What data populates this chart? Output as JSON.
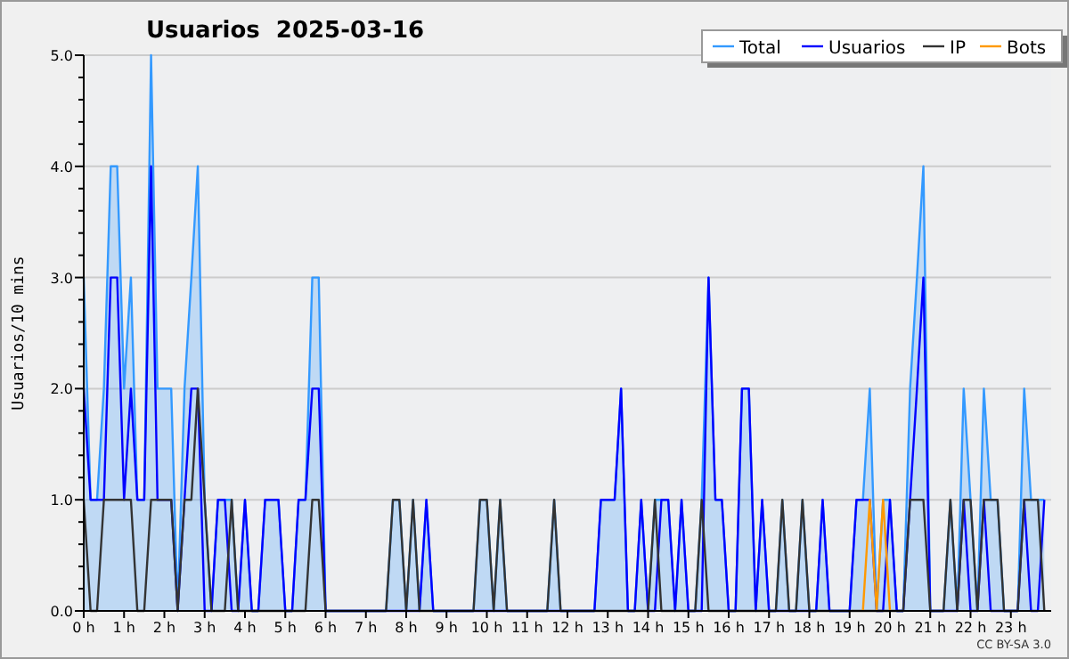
{
  "chart_data": {
    "type": "line",
    "title": "Usuarios  2025-03-16",
    "ylabel": "Usuarios/10 mins",
    "annotations": [
      "CC BY-SA 3.0"
    ],
    "xlim": [
      0,
      24
    ],
    "xticks": [
      {
        "value": 0,
        "label": "0 h"
      },
      {
        "value": 1,
        "label": "1 h"
      },
      {
        "value": 2,
        "label": "2 h"
      },
      {
        "value": 3,
        "label": "3 h"
      },
      {
        "value": 4,
        "label": "4 h"
      },
      {
        "value": 5,
        "label": "5 h"
      },
      {
        "value": 6,
        "label": "6 h"
      },
      {
        "value": 7,
        "label": "7 h"
      },
      {
        "value": 8,
        "label": "8 h"
      },
      {
        "value": 9,
        "label": "9 h"
      },
      {
        "value": 10,
        "label": "10 h"
      },
      {
        "value": 11,
        "label": "11 h"
      },
      {
        "value": 12,
        "label": "12 h"
      },
      {
        "value": 13,
        "label": "13 h"
      },
      {
        "value": 14,
        "label": "14 h"
      },
      {
        "value": 15,
        "label": "15 h"
      },
      {
        "value": 16,
        "label": "16 h"
      },
      {
        "value": 17,
        "label": "17 h"
      },
      {
        "value": 18,
        "label": "18 h"
      },
      {
        "value": 19,
        "label": "19 h"
      },
      {
        "value": 20,
        "label": "20 h"
      },
      {
        "value": 21,
        "label": "21 h"
      },
      {
        "value": 22,
        "label": "22 h"
      },
      {
        "value": 23,
        "label": "23 h"
      }
    ],
    "ylim": [
      0,
      5
    ],
    "yticks": [
      {
        "value": 0,
        "label": "0.0"
      },
      {
        "value": 0.2,
        "label": null
      },
      {
        "value": 0.4,
        "label": null
      },
      {
        "value": 0.6,
        "label": null
      },
      {
        "value": 0.8,
        "label": null
      },
      {
        "value": 1,
        "label": "1.0"
      },
      {
        "value": 1.2,
        "label": null
      },
      {
        "value": 1.4,
        "label": null
      },
      {
        "value": 1.6,
        "label": null
      },
      {
        "value": 1.8,
        "label": null
      },
      {
        "value": 2,
        "label": "2.0"
      },
      {
        "value": 2.2,
        "label": null
      },
      {
        "value": 2.4,
        "label": null
      },
      {
        "value": 2.6,
        "label": null
      },
      {
        "value": 2.8,
        "label": null
      },
      {
        "value": 3,
        "label": "3.0"
      },
      {
        "value": 3.2,
        "label": null
      },
      {
        "value": 3.4,
        "label": null
      },
      {
        "value": 3.6,
        "label": null
      },
      {
        "value": 3.8,
        "label": null
      },
      {
        "value": 4,
        "label": "4.0"
      },
      {
        "value": 4.2,
        "label": null
      },
      {
        "value": 4.4,
        "label": null
      },
      {
        "value": 4.6,
        "label": null
      },
      {
        "value": 4.8,
        "label": null
      },
      {
        "value": 5,
        "label": "5.0"
      }
    ],
    "grid": "y",
    "legend": "top right",
    "marker": "none",
    "line_style": "solid",
    "series": [
      {
        "name": "Total",
        "type": "area",
        "color": "#3399ff",
        "x": [
          0,
          0.17,
          0.33,
          0.5,
          0.67,
          0.83,
          1,
          1.17,
          1.33,
          1.5,
          1.67,
          1.83,
          2.17,
          2.33,
          2.5,
          2.67,
          2.83,
          3,
          3.17,
          3.33,
          3.5,
          3.67,
          3.83,
          4,
          4.17,
          4.33,
          4.5,
          4.83,
          5,
          5.17,
          5.33,
          5.5,
          5.67,
          5.83,
          6,
          7.5,
          7.67,
          7.83,
          8,
          8.17,
          8.33,
          8.5,
          8.67,
          9.67,
          9.83,
          10,
          10.17,
          10.33,
          10.5,
          11.5,
          11.67,
          11.83,
          12.67,
          12.83,
          13.17,
          13.33,
          13.5,
          13.67,
          13.83,
          14,
          14.17,
          14.5,
          14.67,
          14.83,
          15,
          15.17,
          15.33,
          15.5,
          15.67,
          15.83,
          16,
          16.17,
          16.33,
          16.5,
          16.67,
          16.83,
          17,
          17.17,
          17.33,
          17.5,
          17.67,
          17.83,
          18,
          18.17,
          18.33,
          18.5,
          19,
          19.17,
          19.33,
          19.5,
          19.67,
          19.83,
          20,
          20.17,
          20.33,
          20.5,
          20.67,
          20.83,
          21,
          21.33,
          21.5,
          21.67,
          21.83,
          22,
          22.17,
          22.33,
          22.5,
          22.67,
          22.83,
          23.17,
          23.33,
          23.5,
          23.67,
          23.83
        ],
        "values": [
          3,
          1,
          1,
          2,
          4,
          4,
          2,
          3,
          1,
          1,
          5,
          2,
          2,
          0,
          2,
          3,
          4,
          1,
          0,
          1,
          1,
          1,
          0,
          1,
          0,
          0,
          1,
          1,
          0,
          0,
          1,
          1,
          3,
          3,
          0,
          0,
          1,
          1,
          0,
          1,
          0,
          1,
          0,
          0,
          1,
          1,
          0,
          1,
          0,
          0,
          1,
          0,
          0,
          1,
          1,
          2,
          0,
          0,
          1,
          0,
          1,
          1,
          0,
          1,
          0,
          0,
          1,
          3,
          1,
          1,
          0,
          0,
          2,
          2,
          0,
          1,
          0,
          0,
          1,
          0,
          0,
          1,
          0,
          0,
          1,
          0,
          0,
          1,
          1,
          2,
          0,
          1,
          1,
          0,
          0,
          2,
          3,
          4,
          0,
          0,
          1,
          0,
          2,
          1,
          0,
          2,
          1,
          1,
          0,
          0,
          2,
          1,
          1,
          1
        ]
      },
      {
        "name": "Usuarios",
        "type": "line",
        "color": "#0000ff",
        "x": [
          0,
          0.17,
          0.5,
          0.67,
          0.83,
          1,
          1.17,
          1.33,
          1.5,
          1.67,
          1.83,
          2.17,
          2.33,
          2.5,
          2.67,
          2.83,
          3,
          3.17,
          3.33,
          3.5,
          3.67,
          3.83,
          4,
          4.17,
          4.33,
          4.5,
          4.83,
          5,
          5.17,
          5.33,
          5.5,
          5.67,
          5.83,
          6,
          8.33,
          8.5,
          8.67,
          12.67,
          12.83,
          13.17,
          13.33,
          13.5,
          13.67,
          13.83,
          14,
          14.17,
          14.33,
          14.5,
          14.67,
          14.83,
          15,
          15.33,
          15.5,
          15.67,
          15.83,
          16,
          16.17,
          16.33,
          16.5,
          16.67,
          16.83,
          17,
          18.17,
          18.33,
          18.5,
          19,
          19.17,
          19.5,
          19.67,
          19.83,
          20,
          20.17,
          20.33,
          20.5,
          20.67,
          20.83,
          21,
          21.67,
          21.83,
          22,
          22.17,
          22.33,
          22.5,
          23.17,
          23.33,
          23.5,
          23.67,
          23.83
        ],
        "values": [
          2,
          1,
          1,
          3,
          3,
          1,
          2,
          1,
          1,
          4,
          1,
          1,
          0,
          1,
          2,
          2,
          0,
          0,
          1,
          1,
          0,
          0,
          1,
          0,
          0,
          1,
          1,
          0,
          0,
          1,
          1,
          2,
          2,
          0,
          0,
          1,
          0,
          0,
          1,
          1,
          2,
          0,
          0,
          1,
          0,
          0,
          1,
          1,
          0,
          1,
          0,
          0,
          3,
          1,
          1,
          0,
          0,
          2,
          2,
          0,
          1,
          0,
          0,
          1,
          0,
          0,
          1,
          1,
          0,
          0,
          1,
          0,
          0,
          1,
          2,
          3,
          0,
          0,
          1,
          0,
          0,
          1,
          0,
          0,
          1,
          0,
          0,
          1
        ]
      },
      {
        "name": "IP",
        "type": "line",
        "color": "#333333",
        "x": [
          0,
          0.17,
          0.33,
          0.5,
          1.17,
          1.33,
          1.5,
          1.67,
          2.17,
          2.33,
          2.5,
          2.67,
          2.83,
          3,
          3.17,
          3.5,
          3.67,
          3.83,
          5.5,
          5.67,
          5.83,
          6,
          7.5,
          7.67,
          7.83,
          8,
          8.17,
          8.33,
          9.67,
          9.83,
          10,
          10.17,
          10.33,
          10.5,
          11.5,
          11.67,
          11.83,
          14,
          14.17,
          14.33,
          15.17,
          15.33,
          15.5,
          17.17,
          17.33,
          17.5,
          17.67,
          17.83,
          18,
          20.33,
          20.5,
          20.83,
          21,
          21.33,
          21.5,
          21.67,
          21.83,
          22,
          22.17,
          22.33,
          22.67,
          22.83,
          23.17,
          23.33,
          23.67,
          23.83
        ],
        "values": [
          1,
          0,
          0,
          1,
          1,
          0,
          0,
          1,
          1,
          0,
          1,
          1,
          2,
          1,
          0,
          0,
          1,
          0,
          0,
          1,
          1,
          0,
          0,
          1,
          1,
          0,
          1,
          0,
          0,
          1,
          1,
          0,
          1,
          0,
          0,
          1,
          0,
          0,
          1,
          0,
          0,
          1,
          0,
          0,
          1,
          0,
          0,
          1,
          0,
          0,
          1,
          1,
          0,
          0,
          1,
          0,
          1,
          1,
          0,
          1,
          1,
          0,
          0,
          1,
          1,
          0
        ]
      },
      {
        "name": "Bots",
        "type": "line",
        "color": "#ff9900",
        "x": [
          19.33,
          19.5,
          19.67,
          19.83,
          20
        ],
        "values": [
          0,
          1,
          0,
          1,
          0
        ]
      }
    ]
  }
}
